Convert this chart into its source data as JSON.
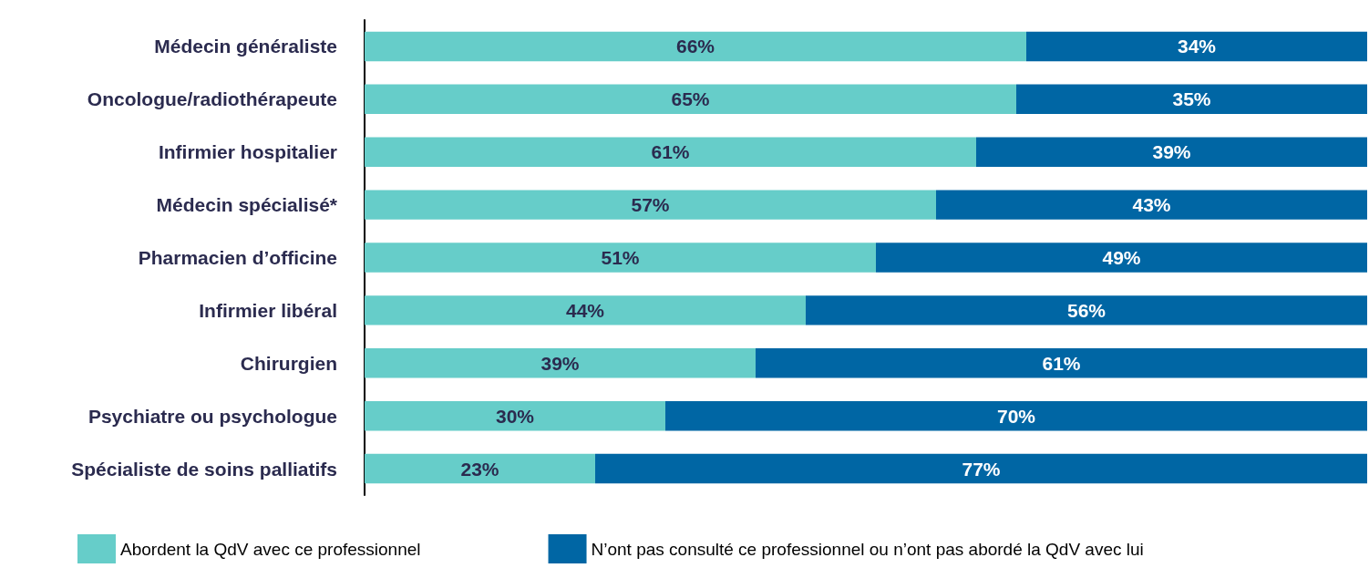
{
  "chart_data": {
    "type": "bar",
    "orientation": "horizontal",
    "stacked": true,
    "categories": [
      "Médecin généraliste",
      "Oncologue/radiothérapeute",
      "Infirmier hospitalier",
      "Médecin spécialisé*",
      "Pharmacien d’officine",
      "Infirmier libéral",
      "Chirurgien",
      "Psychiatre ou psychologue",
      "Spécialiste de soins palliatifs"
    ],
    "series": [
      {
        "name": "Abordent la QdV avec ce professionnel",
        "color": "#66cdc9",
        "values": [
          66,
          65,
          61,
          57,
          51,
          44,
          39,
          30,
          23
        ],
        "value_labels": [
          "66%",
          "65%",
          "61%",
          "57%",
          "51%",
          "44%",
          "39%",
          "30%",
          "23%"
        ]
      },
      {
        "name": "N’ont pas consulté ce professionnel ou n’ont pas abordé la QdV avec lui",
        "color": "#0066a4",
        "values": [
          34,
          35,
          39,
          43,
          49,
          56,
          61,
          70,
          77
        ],
        "value_labels": [
          "34%",
          "35%",
          "39%",
          "43%",
          "49%",
          "56%",
          "61%",
          "70%",
          "77%"
        ]
      }
    ],
    "xlim": [
      0,
      100
    ],
    "tick_labels": "y",
    "legend": "bottom"
  }
}
